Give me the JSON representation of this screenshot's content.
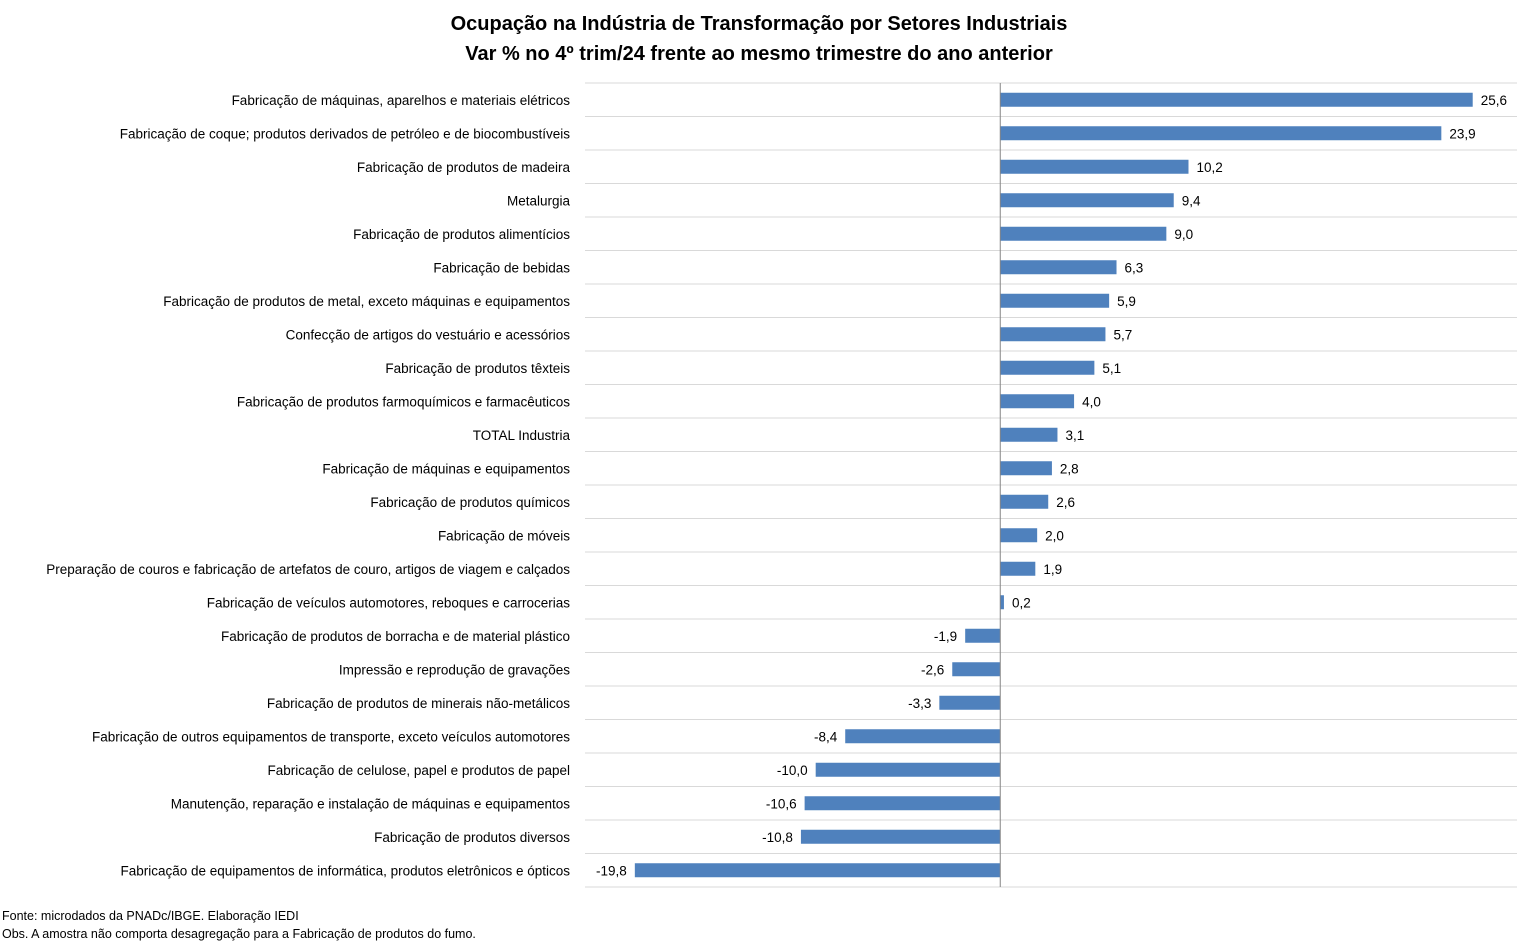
{
  "chart_data": {
    "type": "bar",
    "orientation": "horizontal",
    "title": "Ocupação na Indústria de Transformação por Setores Industriais",
    "subtitle": "Var % no 4º trim/24 frente ao mesmo trimestre do ano anterior",
    "xlabel": "",
    "ylabel": "",
    "xlim": [
      -22.5,
      28
    ],
    "grid": "horizontal",
    "legend": "none",
    "bar_color": "#4f81bd",
    "categories": [
      "Fabricação de máquinas, aparelhos e materiais elétricos",
      "Fabricação de coque; produtos derivados de petróleo e de biocombustíveis",
      "Fabricação de produtos de madeira",
      "Metalurgia",
      "Fabricação de produtos alimentícios",
      "Fabricação de bebidas",
      "Fabricação de produtos de metal, exceto máquinas e equipamentos",
      "Confecção de artigos do vestuário e acessórios",
      "Fabricação de produtos têxteis",
      "Fabricação de produtos farmoquímicos e farmacêuticos",
      "TOTAL Industria",
      "Fabricação de máquinas e equipamentos",
      "Fabricação de produtos químicos",
      "Fabricação de móveis",
      "Preparação de couros e fabricação de artefatos de couro, artigos de viagem e calçados",
      "Fabricação de veículos automotores, reboques e carrocerias",
      "Fabricação de produtos de borracha e de material plástico",
      "Impressão e reprodução de gravações",
      "Fabricação de produtos de minerais não-metálicos",
      "Fabricação de outros equipamentos de transporte, exceto veículos automotores",
      "Fabricação de celulose, papel e produtos de papel",
      "Manutenção, reparação e instalação de máquinas e equipamentos",
      "Fabricação de produtos diversos",
      "Fabricação de equipamentos de informática, produtos eletrônicos e ópticos"
    ],
    "values": [
      25.6,
      23.9,
      10.2,
      9.4,
      9.0,
      6.3,
      5.9,
      5.7,
      5.1,
      4.0,
      3.1,
      2.8,
      2.6,
      2.0,
      1.9,
      0.2,
      -1.9,
      -2.6,
      -3.3,
      -8.4,
      -10.0,
      -10.6,
      -10.8,
      -19.8
    ],
    "data_labels": [
      "25,6",
      "23,9",
      "10,2",
      "9,4",
      "9,0",
      "6,3",
      "5,9",
      "5,7",
      "5,1",
      "4,0",
      "3,1",
      "2,8",
      "2,6",
      "2,0",
      "1,9",
      "0,2",
      "-1,9",
      "-2,6",
      "-3,3",
      "-8,4",
      "-10,0",
      "-10,6",
      "-10,8",
      "-19,8"
    ]
  },
  "notes": {
    "source": "Fonte: microdados da PNADc/IBGE. Elaboração IEDI",
    "obs": "Obs. A amostra não comporta desagregação para a Fabricação de produtos do fumo."
  }
}
